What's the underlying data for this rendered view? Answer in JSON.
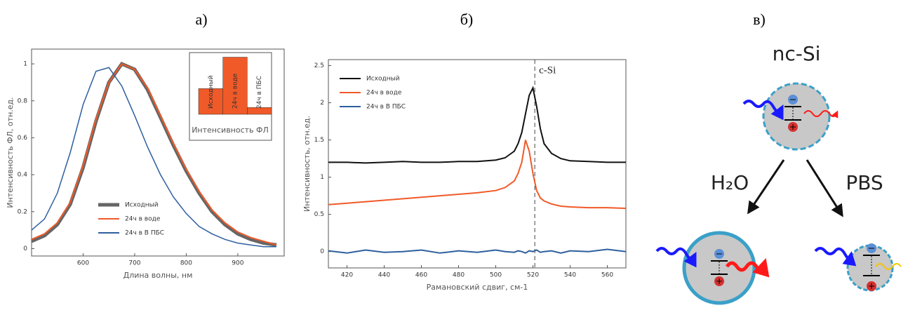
{
  "chart_data": [
    {
      "type": "line",
      "panel_label": "а)",
      "xlabel": "Длина волны, нм",
      "ylabel": "Интенсивность ФЛ, отн.ед.",
      "x": [
        500,
        525,
        550,
        575,
        600,
        625,
        650,
        675,
        700,
        725,
        750,
        775,
        800,
        825,
        850,
        875,
        900,
        925,
        950,
        975
      ],
      "series": [
        {
          "name": "Исходный",
          "color": "#666666",
          "linewidth": 5,
          "values": [
            0.04,
            0.07,
            0.13,
            0.24,
            0.44,
            0.69,
            0.9,
            1.0,
            0.97,
            0.86,
            0.71,
            0.56,
            0.42,
            0.3,
            0.2,
            0.13,
            0.08,
            0.05,
            0.03,
            0.02
          ]
        },
        {
          "name": "24ч в воде",
          "color": "#f05a28",
          "linewidth": 2,
          "values": [
            0.05,
            0.08,
            0.14,
            0.25,
            0.45,
            0.7,
            0.9,
            1.0,
            0.97,
            0.87,
            0.72,
            0.57,
            0.43,
            0.31,
            0.21,
            0.14,
            0.09,
            0.06,
            0.04,
            0.02
          ]
        },
        {
          "name": "24ч в В ПБС",
          "color": "#2e5f9e",
          "linewidth": 1.5,
          "values": [
            0.1,
            0.16,
            0.3,
            0.52,
            0.78,
            0.96,
            0.98,
            0.88,
            0.72,
            0.55,
            0.4,
            0.28,
            0.19,
            0.12,
            0.08,
            0.05,
            0.03,
            0.02,
            0.01,
            0.01
          ]
        }
      ],
      "xlim": [
        500,
        990
      ],
      "ylim": [
        -0.04,
        1.08
      ],
      "xticks": [
        600,
        700,
        800,
        900
      ],
      "yticks": [
        0,
        0.2,
        0.4,
        0.6,
        0.8,
        1
      ],
      "legend": "lower left"
    },
    {
      "type": "bar",
      "xlabel": "Интенсивность ФЛ",
      "categories": [
        "Исходный",
        "24ч в воде",
        "24ч в ПБС"
      ],
      "values": [
        0.45,
        1.0,
        0.12
      ],
      "color": "#f05a28",
      "ylim": [
        0,
        1.08
      ]
    },
    {
      "type": "line",
      "panel_label": "б)",
      "xlabel": "Рамановский сдвиг, см-1",
      "ylabel": "Интенсивность, отн.ед.",
      "x": [
        410,
        420,
        430,
        440,
        450,
        460,
        470,
        480,
        490,
        500,
        505,
        510,
        512,
        514,
        516,
        518,
        520,
        522,
        524,
        526,
        530,
        535,
        540,
        550,
        560,
        570
      ],
      "series": [
        {
          "name": "Исходный",
          "color": "#111111",
          "linewidth": 2,
          "values": [
            1.2,
            1.2,
            1.19,
            1.2,
            1.21,
            1.2,
            1.2,
            1.21,
            1.21,
            1.23,
            1.26,
            1.35,
            1.45,
            1.6,
            1.85,
            2.1,
            2.2,
            1.95,
            1.65,
            1.45,
            1.32,
            1.25,
            1.22,
            1.21,
            1.2,
            1.2
          ]
        },
        {
          "name": "24ч в воде",
          "color": "#f05a28",
          "linewidth": 2,
          "values": [
            0.63,
            0.65,
            0.67,
            0.69,
            0.71,
            0.73,
            0.75,
            0.77,
            0.79,
            0.82,
            0.86,
            0.95,
            1.05,
            1.2,
            1.5,
            1.35,
            1.05,
            0.82,
            0.72,
            0.68,
            0.64,
            0.61,
            0.6,
            0.59,
            0.59,
            0.58
          ]
        },
        {
          "name": "24ч в В ПБС",
          "color": "#2e5f9e",
          "linewidth": 2,
          "values": [
            0.01,
            -0.02,
            0.02,
            -0.01,
            0,
            0.02,
            -0.02,
            0.01,
            -0.01,
            0.02,
            0,
            -0.01,
            0.01,
            0,
            -0.02,
            0.01,
            0,
            0.02,
            -0.01,
            0,
            0.01,
            -0.02,
            0.01,
            0,
            0.03,
            0
          ]
        }
      ],
      "annotations": [
        {
          "text": "c-Si",
          "x": 521
        }
      ],
      "xlim": [
        410,
        570
      ],
      "ylim": [
        -0.22,
        2.58
      ],
      "xticks": [
        420,
        440,
        460,
        480,
        500,
        520,
        540,
        560
      ],
      "yticks": [
        0,
        0.5,
        1,
        1.5,
        2,
        2.5
      ],
      "legend": "upper left"
    }
  ],
  "diagram": {
    "panel_label": "в)",
    "title": "nc-Si",
    "left_label": "H₂O",
    "right_label": "PBS"
  }
}
